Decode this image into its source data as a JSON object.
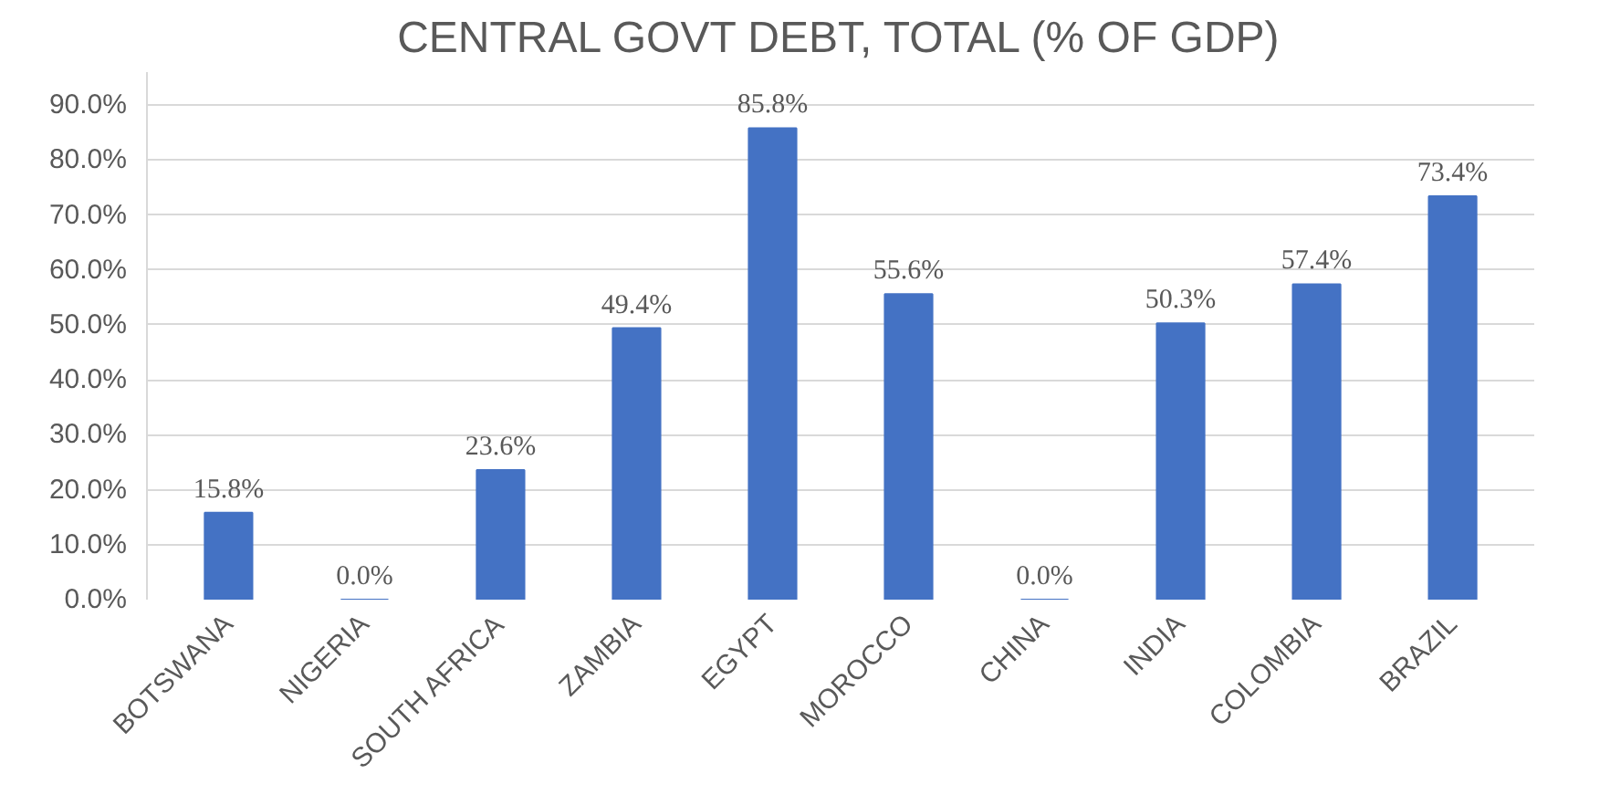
{
  "chart_data": {
    "type": "bar",
    "title": "CENTRAL GOVT DEBT, TOTAL (% OF GDP)",
    "categories": [
      "BOTSWANA",
      "NIGERIA",
      "SOUTH AFRICA",
      "ZAMBIA",
      "EGYPT",
      "MOROCCO",
      "CHINA",
      "INDIA",
      "COLOMBIA",
      "BRAZIL"
    ],
    "values": [
      15.8,
      0.0,
      23.6,
      49.4,
      85.8,
      55.6,
      0.0,
      50.3,
      57.4,
      73.4
    ],
    "value_labels": [
      "15.8%",
      "0.0%",
      "23.6%",
      "49.4%",
      "85.8%",
      "55.6%",
      "0.0%",
      "50.3%",
      "57.4%",
      "73.4%"
    ],
    "color": "#4472c4",
    "ylim": [
      0,
      96
    ],
    "yticks": [
      {
        "value": 0,
        "label": "0.0%"
      },
      {
        "value": 10,
        "label": "10.0%"
      },
      {
        "value": 20,
        "label": "20.0%"
      },
      {
        "value": 30,
        "label": "30.0%"
      },
      {
        "value": 40,
        "label": "40.0%"
      },
      {
        "value": 50,
        "label": "50.0%"
      },
      {
        "value": 60,
        "label": "60.0%"
      },
      {
        "value": 70,
        "label": "70.0%"
      },
      {
        "value": 80,
        "label": "80.0%"
      },
      {
        "value": 90,
        "label": "90.0%"
      }
    ],
    "grid": "y"
  }
}
